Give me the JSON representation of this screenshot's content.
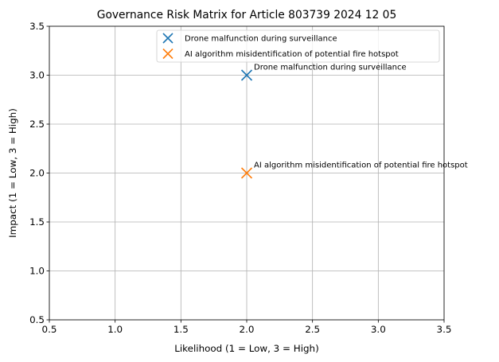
{
  "chart_data": {
    "type": "scatter",
    "title": "Governance Risk Matrix for Article 803739 2024 12 05",
    "xlabel": "Likelihood (1 = Low, 3 = High)",
    "ylabel": "Impact (1 = Low, 3 = High)",
    "xlim": [
      0.5,
      3.5
    ],
    "ylim": [
      0.5,
      3.5
    ],
    "xticks": [
      0.5,
      1.0,
      1.5,
      2.0,
      2.5,
      3.0,
      3.5
    ],
    "yticks": [
      0.5,
      1.0,
      1.5,
      2.0,
      2.5,
      3.0,
      3.5
    ],
    "xtick_labels": [
      "0.5",
      "1.0",
      "1.5",
      "2.0",
      "2.5",
      "3.0",
      "3.5"
    ],
    "ytick_labels": [
      "0.5",
      "1.0",
      "1.5",
      "2.0",
      "2.5",
      "3.0",
      "3.5"
    ],
    "grid": true,
    "legend_position": "top-right",
    "marker": "x",
    "series": [
      {
        "name": "Drone malfunction during surveillance",
        "color": "#1f77b4",
        "x": 2,
        "y": 3,
        "annotation": "Drone malfunction during surveillance"
      },
      {
        "name": "AI algorithm misidentification of potential fire hotspot",
        "color": "#ff7f0e",
        "x": 2,
        "y": 2,
        "annotation": "AI algorithm misidentification of potential fire hotspot"
      }
    ]
  }
}
